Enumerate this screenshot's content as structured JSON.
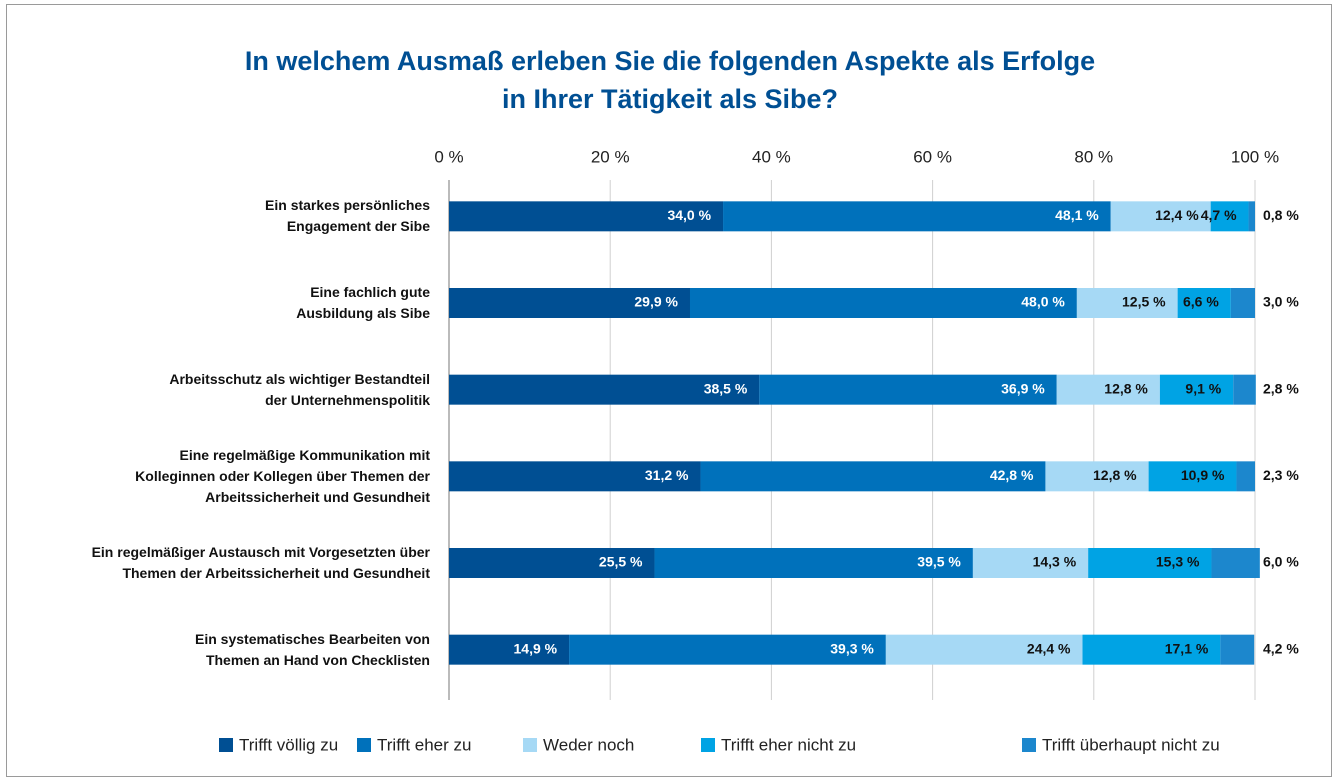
{
  "chart_data": {
    "type": "stacked_bar_horizontal",
    "title": "In welchem Ausmaß erleben Sie die folgenden Aspekte als Erfolge\nin Ihrer Tätigkeit als Sibe?",
    "categories": [
      "Ein starkes persönliches\nEngagement der Sibe",
      "Eine fachlich gute\nAusbildung als Sibe",
      "Arbeitsschutz als wichtiger Bestandteil\nder Unternehmenspolitik",
      "Eine regelmäßige Kommunikation mit\nKolleginnen oder Kollegen über Themen der\nArbeitssicherheit und Gesundheit",
      "Ein regelmäßiger Austausch mit Vorgesetzten über\nThemen der Arbeitssicherheit und Gesundheit",
      "Ein systematisches Bearbeiten von\nThemen an Hand von Checklisten"
    ],
    "series": [
      {
        "name": "Trifft völlig zu",
        "color": "#004f93",
        "values": [
          34.0,
          29.9,
          38.5,
          31.2,
          25.5,
          14.9
        ],
        "value_labels": [
          "34,0 %",
          "29,9 %",
          "38,5 %",
          "31,2 %",
          "25,5 %",
          "14,9 %"
        ]
      },
      {
        "name": "Trifft eher zu",
        "color": "#0071bb",
        "values": [
          48.1,
          48.0,
          36.9,
          42.8,
          39.5,
          39.3
        ],
        "value_labels": [
          "48,1 %",
          "48,0 %",
          "36,9 %",
          "42,8 %",
          "39,5 %",
          "39,3 %"
        ]
      },
      {
        "name": "Weder noch",
        "color": "#a6d9f5",
        "values": [
          12.4,
          12.5,
          12.8,
          12.8,
          14.3,
          24.4
        ],
        "value_labels": [
          "12,4 %",
          "12,5 %",
          "12,8 %",
          "12,8 %",
          "14,3 %",
          "24,4 %"
        ]
      },
      {
        "name": "Trifft eher nicht zu",
        "color": "#00a3e4",
        "values": [
          4.7,
          6.6,
          9.1,
          10.9,
          15.3,
          17.1
        ],
        "value_labels": [
          "4,7 %",
          "6,6 %",
          "9,1 %",
          "10,9 %",
          "15,3 %",
          "17,1 %"
        ]
      },
      {
        "name": "Trifft überhaupt nicht zu",
        "color": "#1c87cd",
        "values": [
          0.8,
          3.0,
          2.8,
          2.3,
          6.0,
          4.2
        ],
        "value_labels": [
          "0,8 %",
          "3,0 %",
          "2,8 %",
          "2,3 %",
          "6,0 %",
          "4,2 %"
        ]
      }
    ],
    "xlim": [
      0,
      100
    ],
    "xticks": [
      {
        "value": 0,
        "label": "0 %"
      },
      {
        "value": 20,
        "label": "20 %"
      },
      {
        "value": 40,
        "label": "40 %"
      },
      {
        "value": 60,
        "label": "60 %"
      },
      {
        "value": 80,
        "label": "80 %"
      },
      {
        "value": 100,
        "label": "100 %"
      }
    ],
    "grid": true,
    "legend": "bottom"
  }
}
